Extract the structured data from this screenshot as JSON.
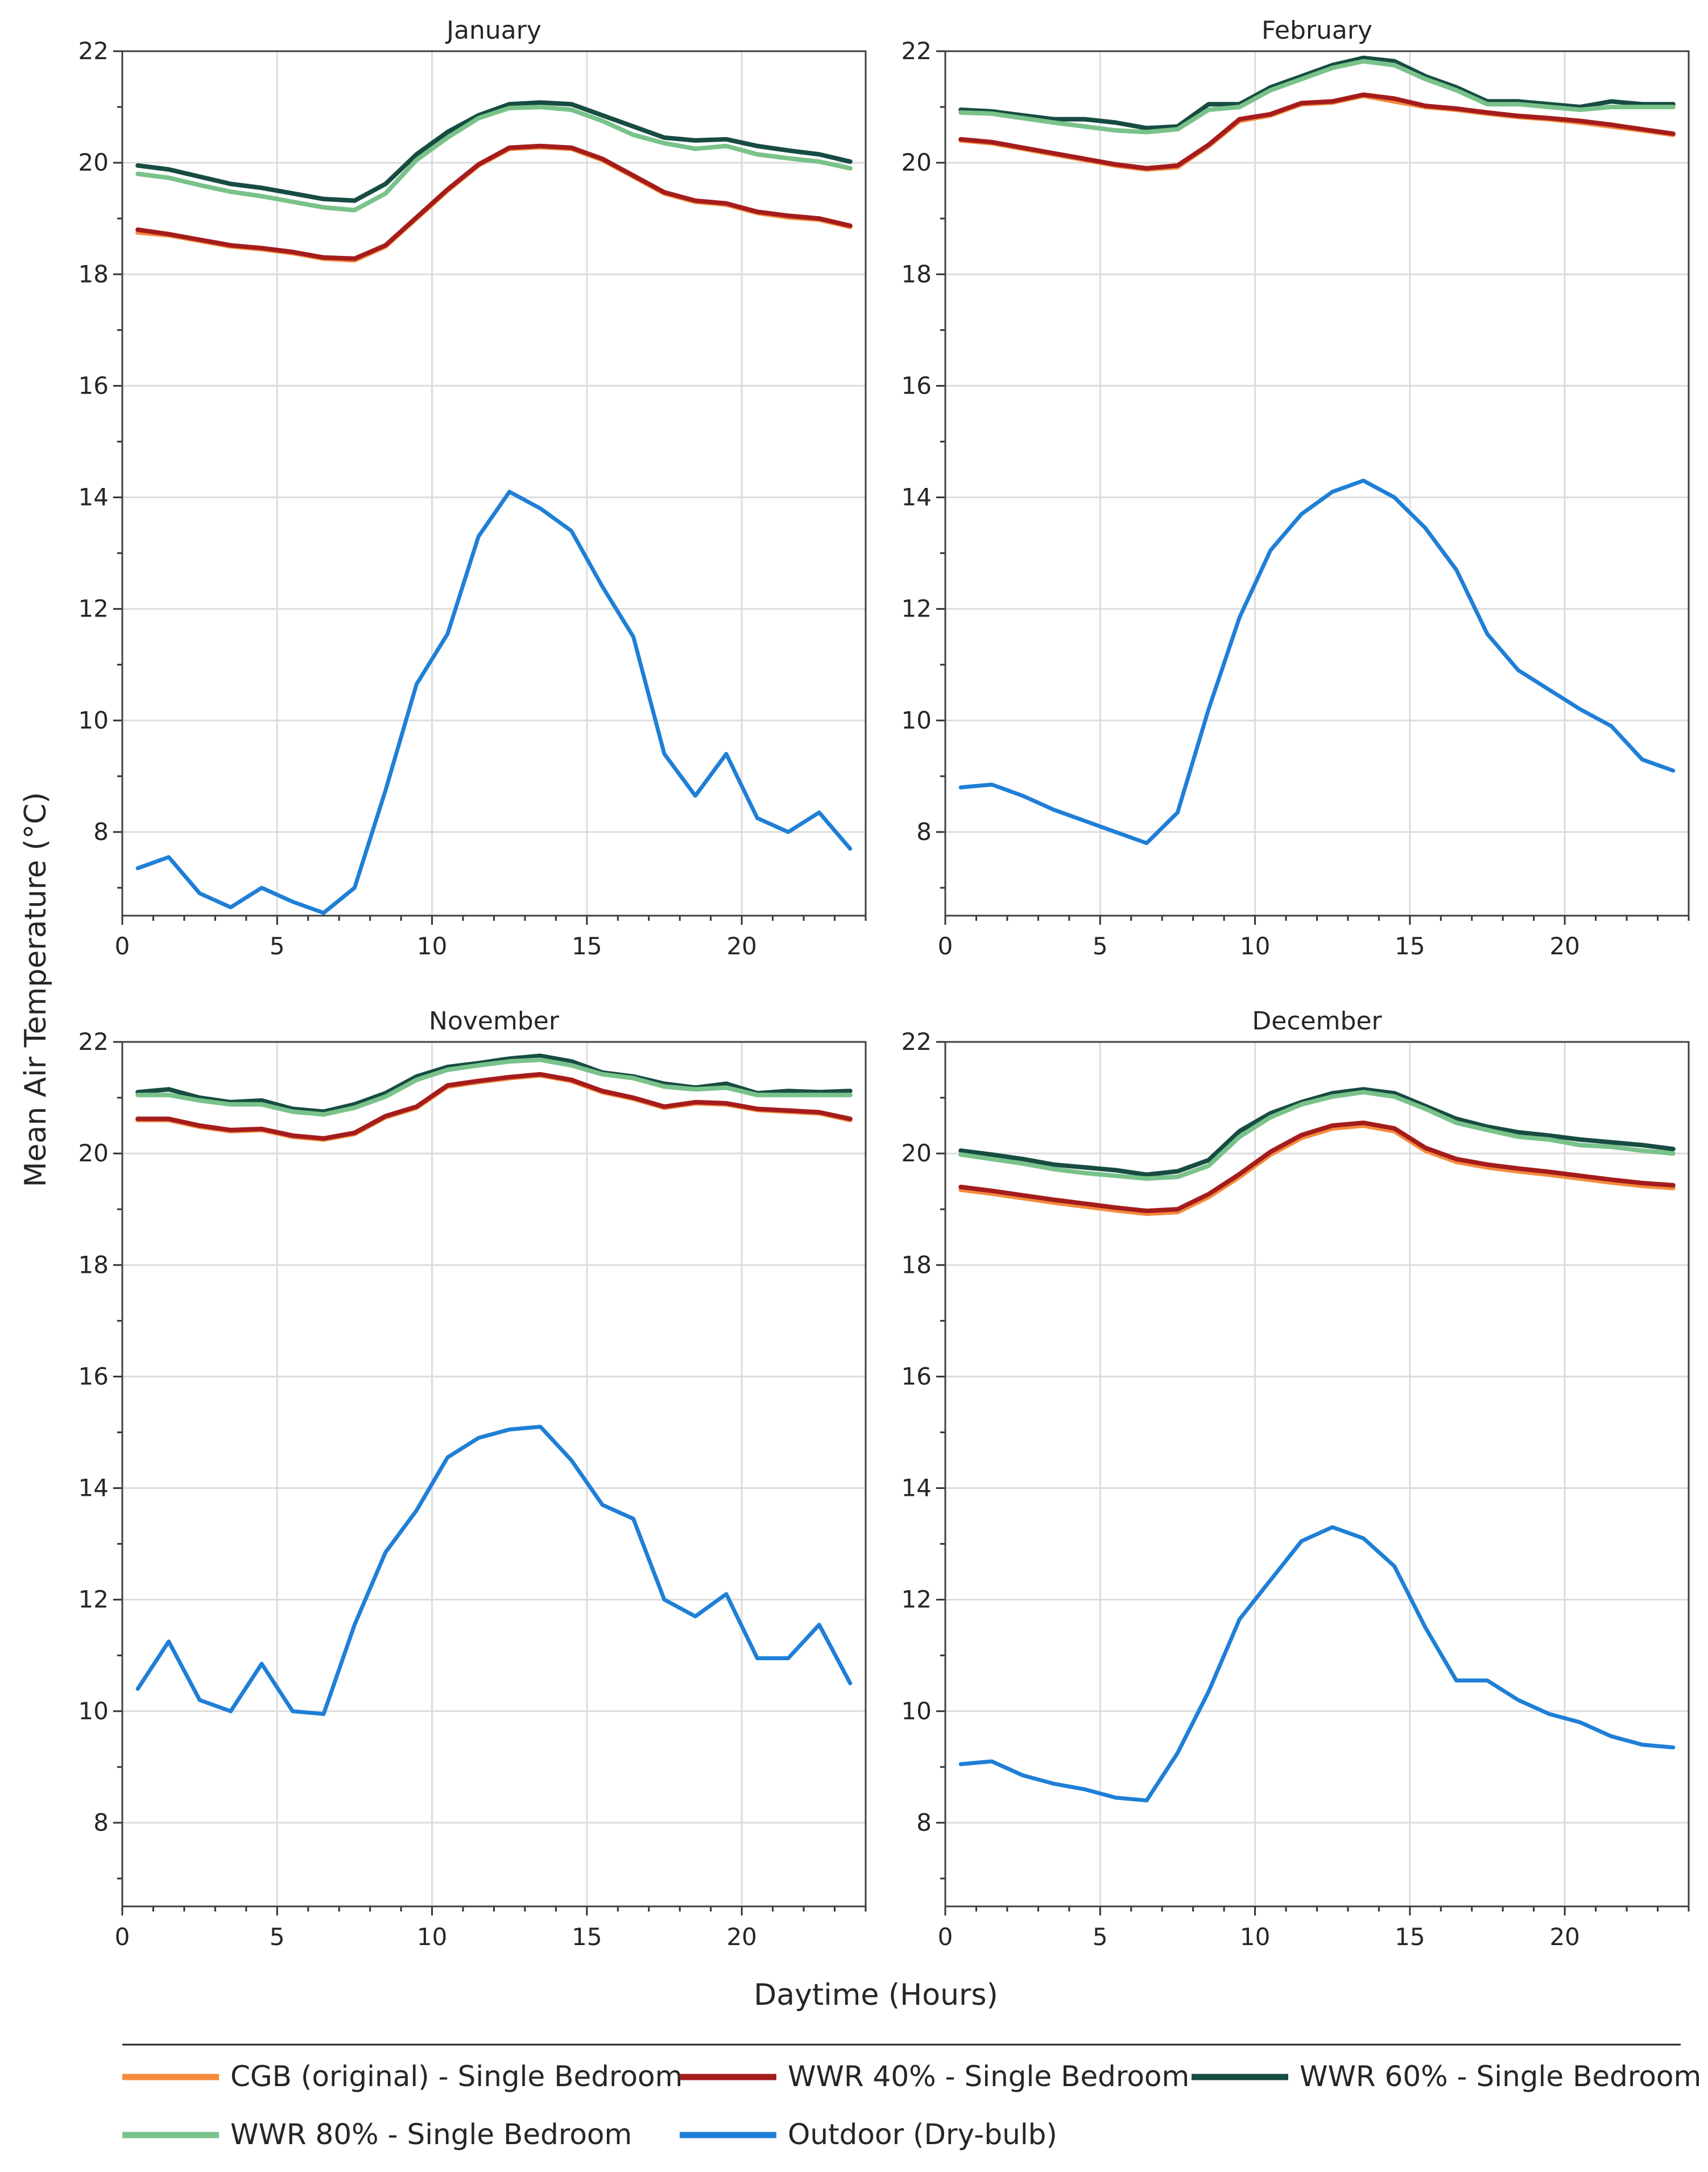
{
  "chart_data": {
    "type": "line",
    "ylabel": "Mean Air Temperature (°C)",
    "xlabel": "Daytime (Hours)",
    "xlim": [
      0,
      24
    ],
    "x_ticks": [
      0,
      5,
      10,
      15,
      20
    ],
    "grid": true,
    "legend_position": "bottom",
    "x": [
      0.5,
      1.5,
      2.5,
      3.5,
      4.5,
      5.5,
      6.5,
      7.5,
      8.5,
      9.5,
      10.5,
      11.5,
      12.5,
      13.5,
      14.5,
      15.5,
      16.5,
      17.5,
      18.5,
      19.5,
      20.5,
      21.5,
      22.5,
      23.5
    ],
    "legend": [
      {
        "name": "CGB (original) - Single Bedroom",
        "color": "#f58a3c"
      },
      {
        "name": "WWR 40% - Single Bedroom",
        "color": "#a51c1c"
      },
      {
        "name": "WWR 60% - Single Bedroom",
        "color": "#174c42"
      },
      {
        "name": "WWR 80% - Single Bedroom",
        "color": "#79c28a"
      },
      {
        "name": "Outdoor (Dry-bulb)",
        "color": "#1f7fd6"
      }
    ],
    "panels": [
      {
        "title": "January",
        "ylim": [
          6.5,
          22
        ],
        "y_ticks": [
          8,
          10,
          12,
          14,
          16,
          18,
          20,
          22
        ],
        "series": [
          {
            "name": "CGB (original) - Single Bedroom",
            "values": [
              18.75,
              18.7,
              18.6,
              18.5,
              18.45,
              18.38,
              18.28,
              18.25,
              18.5,
              19.0,
              19.5,
              19.95,
              20.25,
              20.28,
              20.25,
              20.05,
              19.75,
              19.45,
              19.3,
              19.25,
              19.1,
              19.02,
              18.98,
              18.85
            ]
          },
          {
            "name": "WWR 40% - Single Bedroom",
            "values": [
              18.8,
              18.72,
              18.62,
              18.52,
              18.47,
              18.4,
              18.3,
              18.28,
              18.52,
              19.02,
              19.52,
              19.97,
              20.27,
              20.3,
              20.27,
              20.07,
              19.77,
              19.47,
              19.32,
              19.27,
              19.12,
              19.05,
              19.0,
              18.87
            ]
          },
          {
            "name": "WWR 60% - Single Bedroom",
            "values": [
              19.95,
              19.88,
              19.75,
              19.62,
              19.55,
              19.45,
              19.35,
              19.32,
              19.62,
              20.15,
              20.55,
              20.85,
              21.05,
              21.08,
              21.05,
              20.85,
              20.65,
              20.45,
              20.4,
              20.42,
              20.3,
              20.22,
              20.15,
              20.02
            ]
          },
          {
            "name": "WWR 80% - Single Bedroom",
            "values": [
              19.8,
              19.73,
              19.6,
              19.48,
              19.4,
              19.3,
              19.2,
              19.15,
              19.45,
              20.05,
              20.45,
              20.8,
              20.98,
              21.0,
              20.95,
              20.75,
              20.5,
              20.35,
              20.25,
              20.3,
              20.15,
              20.08,
              20.02,
              19.9
            ]
          },
          {
            "name": "Outdoor (Dry-bulb)",
            "values": [
              7.35,
              7.55,
              6.9,
              6.65,
              7.0,
              6.75,
              6.55,
              7.0,
              8.75,
              10.65,
              11.55,
              13.3,
              14.1,
              13.8,
              13.4,
              12.4,
              11.5,
              9.4,
              8.65,
              9.4,
              8.25,
              8.0,
              8.35,
              7.7
            ]
          }
        ]
      },
      {
        "title": "February",
        "ylim": [
          6.5,
          22
        ],
        "y_ticks": [
          8,
          10,
          12,
          14,
          16,
          18,
          20,
          22
        ],
        "series": [
          {
            "name": "CGB (original) - Single Bedroom",
            "values": [
              20.4,
              20.35,
              20.25,
              20.15,
              20.05,
              19.95,
              19.88,
              19.92,
              20.3,
              20.75,
              20.85,
              21.05,
              21.08,
              21.2,
              21.1,
              21.0,
              20.95,
              20.88,
              20.82,
              20.78,
              20.72,
              20.65,
              20.58,
              20.5
            ]
          },
          {
            "name": "WWR 40% - Single Bedroom",
            "values": [
              20.42,
              20.37,
              20.27,
              20.17,
              20.07,
              19.97,
              19.9,
              19.95,
              20.32,
              20.78,
              20.87,
              21.07,
              21.1,
              21.22,
              21.15,
              21.02,
              20.97,
              20.9,
              20.84,
              20.8,
              20.75,
              20.68,
              20.6,
              20.52
            ]
          },
          {
            "name": "WWR 60% - Single Bedroom",
            "values": [
              20.95,
              20.92,
              20.85,
              20.78,
              20.78,
              20.72,
              20.62,
              20.65,
              21.05,
              21.05,
              21.35,
              21.55,
              21.75,
              21.88,
              21.82,
              21.55,
              21.35,
              21.1,
              21.1,
              21.05,
              21.0,
              21.1,
              21.05,
              21.05
            ]
          },
          {
            "name": "WWR 80% - Single Bedroom",
            "values": [
              20.9,
              20.88,
              20.8,
              20.72,
              20.65,
              20.58,
              20.55,
              20.6,
              20.95,
              21.0,
              21.3,
              21.5,
              21.7,
              21.82,
              21.75,
              21.5,
              21.3,
              21.05,
              21.05,
              21.0,
              20.95,
              21.0,
              21.0,
              21.0
            ]
          },
          {
            "name": "Outdoor (Dry-bulb)",
            "values": [
              8.8,
              8.85,
              8.65,
              8.4,
              8.2,
              8.0,
              7.8,
              8.35,
              10.2,
              11.85,
              13.05,
              13.7,
              14.1,
              14.3,
              14.0,
              13.45,
              12.7,
              11.55,
              10.9,
              10.55,
              10.2,
              9.9,
              9.3,
              9.1
            ]
          }
        ]
      },
      {
        "title": "November",
        "ylim": [
          6.5,
          22
        ],
        "y_ticks": [
          8,
          10,
          12,
          14,
          16,
          18,
          20,
          22
        ],
        "series": [
          {
            "name": "CGB (original) - Single Bedroom",
            "values": [
              20.6,
              20.6,
              20.48,
              20.4,
              20.42,
              20.3,
              20.25,
              20.35,
              20.65,
              20.82,
              21.2,
              21.28,
              21.35,
              21.4,
              21.3,
              21.1,
              20.98,
              20.82,
              20.9,
              20.88,
              20.78,
              20.75,
              20.72,
              20.6
            ]
          },
          {
            "name": "WWR 40% - Single Bedroom",
            "values": [
              20.62,
              20.62,
              20.5,
              20.42,
              20.44,
              20.32,
              20.27,
              20.37,
              20.67,
              20.84,
              21.22,
              21.3,
              21.37,
              21.42,
              21.32,
              21.12,
              21.0,
              20.84,
              20.92,
              20.9,
              20.8,
              20.77,
              20.74,
              20.62
            ]
          },
          {
            "name": "WWR 60% - Single Bedroom",
            "values": [
              21.1,
              21.15,
              21.0,
              20.92,
              20.95,
              20.8,
              20.75,
              20.88,
              21.08,
              21.38,
              21.55,
              21.62,
              21.7,
              21.75,
              21.65,
              21.45,
              21.38,
              21.25,
              21.18,
              21.25,
              21.08,
              21.12,
              21.1,
              21.12
            ]
          },
          {
            "name": "WWR 80% - Single Bedroom",
            "values": [
              21.05,
              21.05,
              20.95,
              20.88,
              20.88,
              20.75,
              20.7,
              20.82,
              21.02,
              21.32,
              21.5,
              21.58,
              21.65,
              21.68,
              21.58,
              21.42,
              21.35,
              21.2,
              21.15,
              21.18,
              21.05,
              21.05,
              21.05,
              21.05
            ]
          },
          {
            "name": "Outdoor (Dry-bulb)",
            "values": [
              10.4,
              11.25,
              10.2,
              10.0,
              10.85,
              10.0,
              9.95,
              11.55,
              12.85,
              13.6,
              14.55,
              14.9,
              15.05,
              15.1,
              14.5,
              13.7,
              13.45,
              12.0,
              11.7,
              12.1,
              10.95,
              10.95,
              11.55,
              10.5
            ]
          }
        ]
      },
      {
        "title": "December",
        "ylim": [
          6.5,
          22
        ],
        "y_ticks": [
          8,
          10,
          12,
          14,
          16,
          18,
          20,
          22
        ],
        "series": [
          {
            "name": "CGB (original) - Single Bedroom",
            "values": [
              19.35,
              19.28,
              19.2,
              19.12,
              19.05,
              18.98,
              18.92,
              18.95,
              19.22,
              19.58,
              19.98,
              20.28,
              20.45,
              20.5,
              20.4,
              20.05,
              19.85,
              19.75,
              19.68,
              19.62,
              19.55,
              19.48,
              19.42,
              19.38
            ]
          },
          {
            "name": "WWR 40% - Single Bedroom",
            "values": [
              19.4,
              19.33,
              19.25,
              19.17,
              19.1,
              19.03,
              18.97,
              19.0,
              19.27,
              19.63,
              20.03,
              20.33,
              20.5,
              20.55,
              20.45,
              20.1,
              19.9,
              19.8,
              19.73,
              19.67,
              19.6,
              19.53,
              19.47,
              19.43
            ]
          },
          {
            "name": "WWR 60% - Single Bedroom",
            "values": [
              20.05,
              19.98,
              19.9,
              19.8,
              19.75,
              19.7,
              19.62,
              19.68,
              19.88,
              20.4,
              20.72,
              20.92,
              21.08,
              21.15,
              21.08,
              20.85,
              20.62,
              20.48,
              20.38,
              20.32,
              20.25,
              20.2,
              20.15,
              20.08
            ]
          },
          {
            "name": "WWR 80% - Single Bedroom",
            "values": [
              19.98,
              19.9,
              19.82,
              19.72,
              19.65,
              19.6,
              19.55,
              19.58,
              19.78,
              20.3,
              20.65,
              20.88,
              21.02,
              21.1,
              21.02,
              20.8,
              20.55,
              20.42,
              20.3,
              20.25,
              20.15,
              20.12,
              20.05,
              20.0
            ]
          },
          {
            "name": "Outdoor (Dry-bulb)",
            "values": [
              9.05,
              9.1,
              8.85,
              8.7,
              8.6,
              8.45,
              8.4,
              9.25,
              10.35,
              11.65,
              12.35,
              13.05,
              13.3,
              13.1,
              12.6,
              11.5,
              10.55,
              10.55,
              10.2,
              9.95,
              9.8,
              9.55,
              9.4,
              9.35
            ]
          }
        ]
      }
    ]
  }
}
